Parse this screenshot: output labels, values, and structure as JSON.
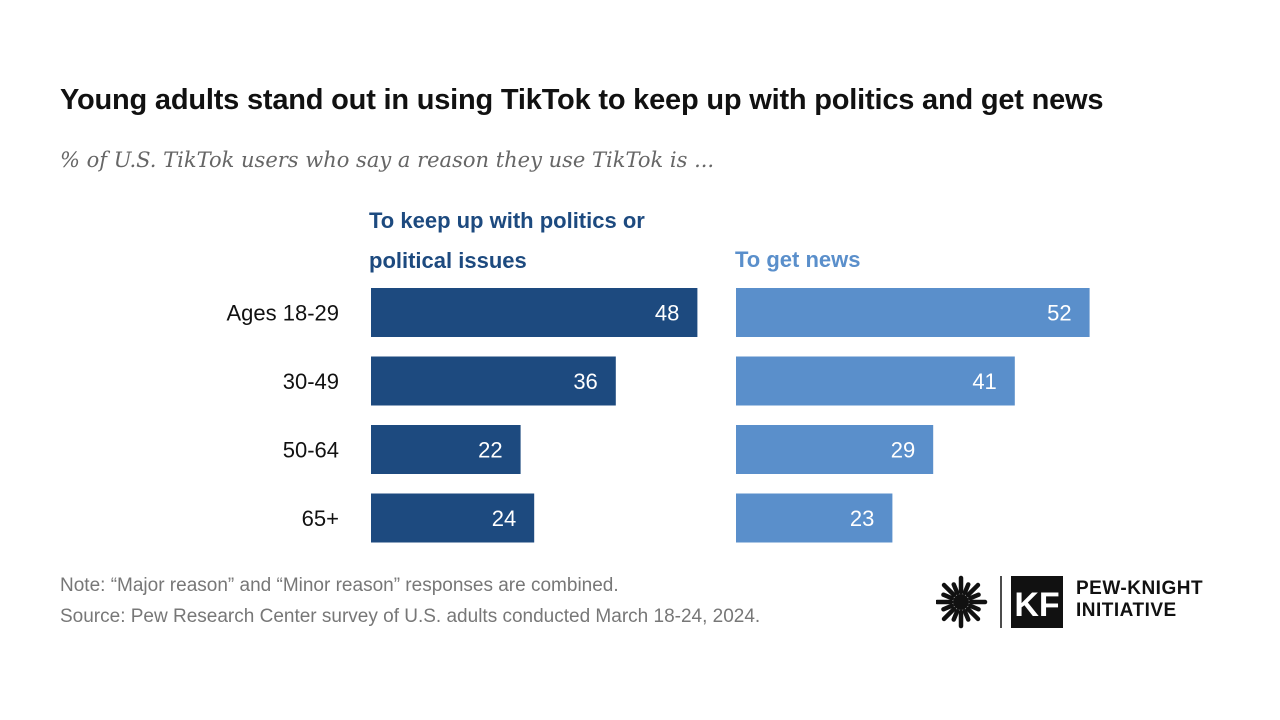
{
  "title": "Young adults stand out in using TikTok to keep up with politics and get news",
  "subtitle": "% of U.S. TikTok users who say a reason they use TikTok is ...",
  "chart_data": {
    "type": "bar",
    "orientation": "horizontal",
    "categories": [
      "Ages 18-29",
      "30-49",
      "50-64",
      "65+"
    ],
    "series": [
      {
        "name": "To keep up with politics or political issues",
        "values": [
          48,
          36,
          22,
          24
        ],
        "color": "#1d4a7f"
      },
      {
        "name": "To get news",
        "values": [
          52,
          41,
          29,
          23
        ],
        "color": "#5a8fcb"
      }
    ],
    "xlim": [
      0,
      100
    ],
    "grid": false,
    "data_labels": true
  },
  "footer": {
    "note": "Note: “Major reason” and “Minor reason” responses are combined.",
    "source": "Source: Pew Research Center survey of U.S. adults conducted March 18-24, 2024."
  },
  "logo": {
    "line1": "PEW-KNIGHT",
    "line2": "INITIATIVE",
    "mark_text": "KF"
  }
}
